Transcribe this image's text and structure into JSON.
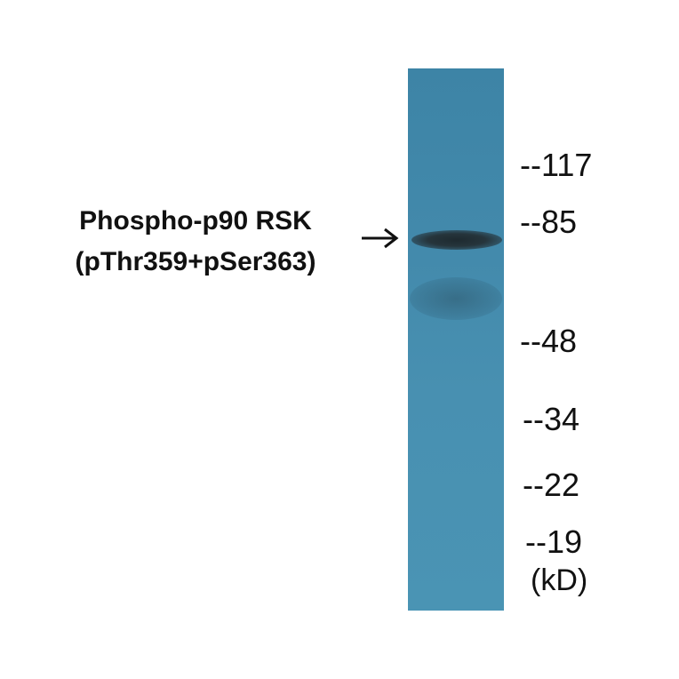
{
  "protein_label": {
    "line1": "Phospho-p90 RSK",
    "line2": "(pThr359+pSer363)"
  },
  "arrow_icon": "right-arrow",
  "markers": [
    "--117",
    "--85",
    "--48",
    "--34",
    "--22",
    "--19"
  ],
  "unit": "(kD)",
  "colors": {
    "lane": "#4289ab",
    "band": "#222e34"
  }
}
